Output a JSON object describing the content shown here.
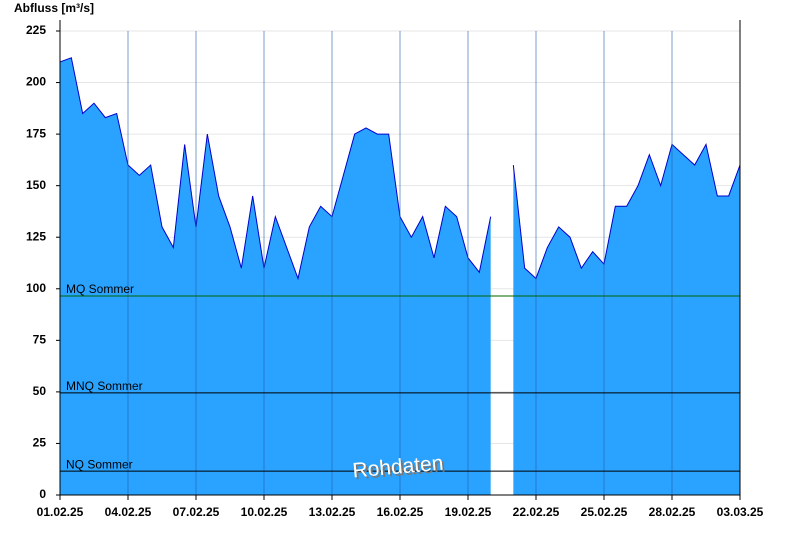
{
  "chart_data": {
    "type": "area",
    "y_label": "Abfluss [m³/s]",
    "x": [
      0,
      0.5,
      1,
      1.5,
      2,
      2.5,
      3,
      3.5,
      4,
      4.5,
      5,
      5.5,
      6,
      6.5,
      7,
      7.5,
      8,
      8.5,
      9,
      9.5,
      10,
      10.5,
      11,
      11.5,
      12,
      12.5,
      13,
      13.5,
      14,
      14.5,
      15,
      15.5,
      16,
      16.5,
      17,
      17.5,
      18,
      18.5,
      19,
      19.5,
      20,
      20.5,
      21,
      21.5,
      22,
      22.5,
      23,
      23.5,
      24,
      24.5,
      25,
      25.5,
      26,
      26.5,
      27,
      27.5,
      28,
      28.5,
      29,
      29.5,
      30
    ],
    "series": [
      {
        "color": "#29a3ff",
        "line_color": "#0000cc",
        "values": [
          210,
          212,
          185,
          190,
          183,
          185,
          160,
          155,
          160,
          130,
          120,
          170,
          130,
          175,
          145,
          130,
          110,
          145,
          110,
          135,
          120,
          105,
          130,
          140,
          135,
          155,
          175,
          178,
          175,
          175,
          135,
          125,
          135,
          115,
          140,
          135,
          115,
          108,
          135,
          null,
          160,
          110,
          105,
          120,
          130,
          125,
          110,
          118,
          112,
          140,
          140,
          150,
          165,
          150,
          170,
          165,
          160,
          170,
          145,
          145,
          160
        ]
      }
    ],
    "xlim": [
      0,
      30
    ],
    "xticks": [
      {
        "value": 0,
        "label": "01.02.25"
      },
      {
        "value": 3,
        "label": "04.02.25"
      },
      {
        "value": 6,
        "label": "07.02.25"
      },
      {
        "value": 9,
        "label": "10.02.25"
      },
      {
        "value": 12,
        "label": "13.02.25"
      },
      {
        "value": 15,
        "label": "16.02.25"
      },
      {
        "value": 18,
        "label": "19.02.25"
      },
      {
        "value": 21,
        "label": "22.02.25"
      },
      {
        "value": 24,
        "label": "25.02.25"
      },
      {
        "value": 27,
        "label": "28.02.25"
      },
      {
        "value": 30,
        "label": "03.03.25"
      }
    ],
    "ylim": [
      0,
      225
    ],
    "yticks": [
      0,
      25,
      50,
      75,
      100,
      125,
      150,
      175,
      200,
      225
    ],
    "grid": true,
    "reference_lines": [
      {
        "label": "MQ Sommer",
        "value": 96.5,
        "color": "#006400"
      },
      {
        "label": "MNQ Sommer",
        "value": 49.5,
        "color": "#000000"
      },
      {
        "label": "NQ Sommer",
        "value": 11.6,
        "color": "#000000"
      }
    ],
    "annotation": "Rohdaten"
  }
}
